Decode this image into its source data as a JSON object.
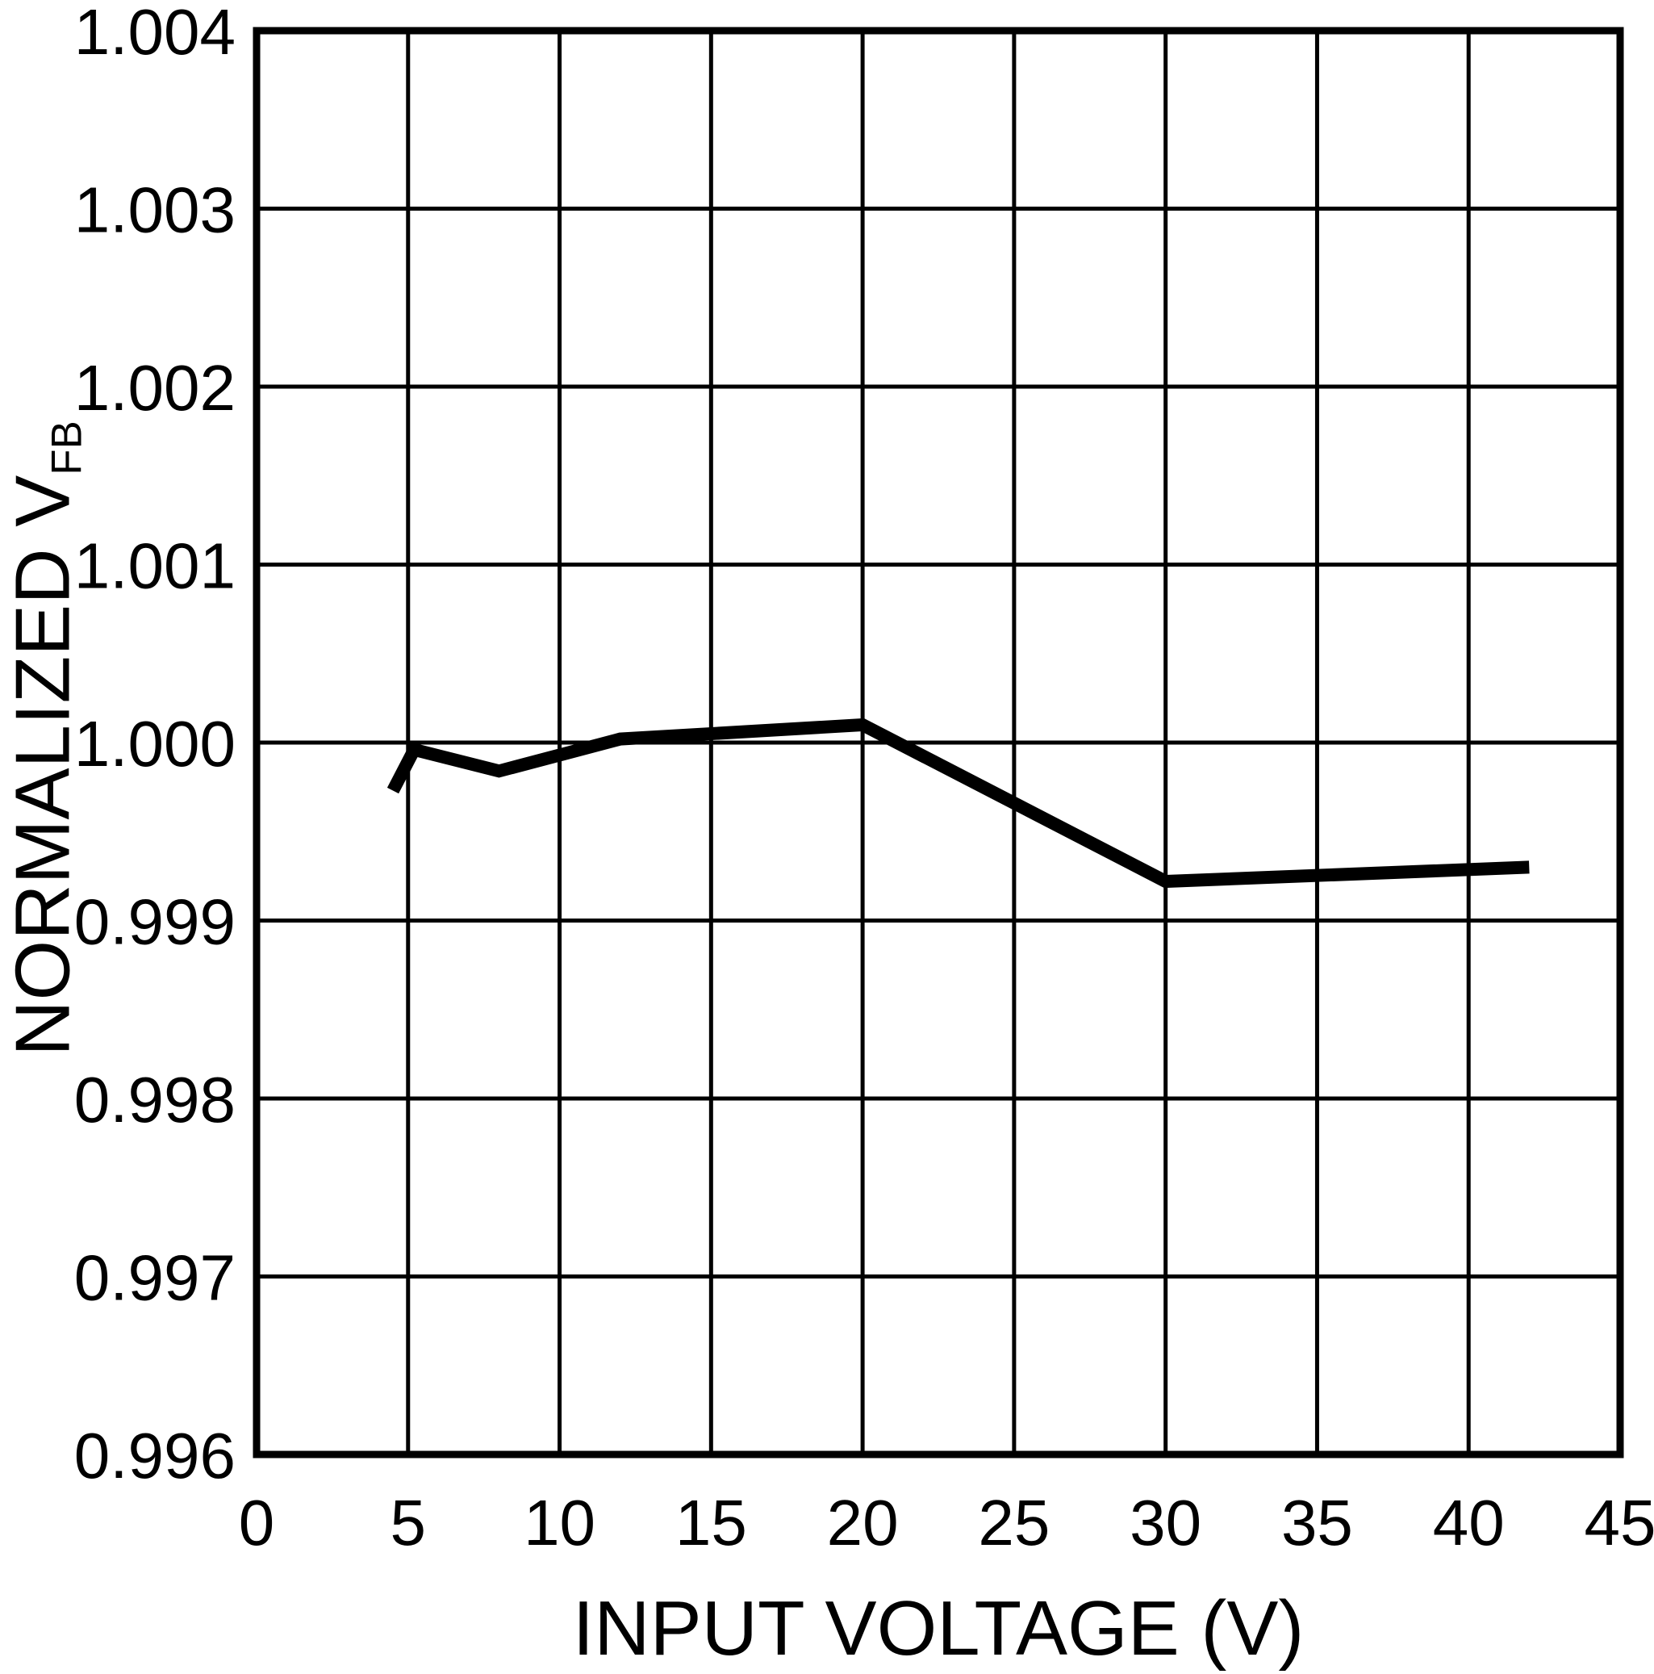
{
  "figure": {
    "background_color": "#ffffff"
  },
  "chart_data": {
    "type": "line",
    "title": "",
    "xlabel": "INPUT VOLTAGE (V)",
    "ylabel": "NORMALIZED V",
    "ylabel_subscript": "FB",
    "xlim": [
      0,
      45
    ],
    "ylim": [
      0.996,
      1.004
    ],
    "xticks": [
      0,
      5,
      10,
      15,
      20,
      25,
      30,
      35,
      40,
      45
    ],
    "xtick_labels": [
      "0",
      "5",
      "10",
      "15",
      "20",
      "25",
      "30",
      "35",
      "40",
      "45"
    ],
    "yticks": [
      0.996,
      0.997,
      0.998,
      0.999,
      1.0,
      1.001,
      1.002,
      1.003,
      1.004
    ],
    "ytick_labels": [
      "0.996",
      "0.997",
      "0.998",
      "0.999",
      "1.000",
      "1.001",
      "1.002",
      "1.003",
      "1.004"
    ],
    "grid": true,
    "legend": "none",
    "axis_color": "#000000",
    "grid_color": "#000000",
    "line_color": "#000000",
    "series": [
      {
        "name": "normalized-vfb-vs-input-voltage",
        "points": [
          [
            4.5,
            0.99973
          ],
          [
            5.2,
            0.99996
          ],
          [
            8,
            0.99984
          ],
          [
            12,
            1.00002
          ],
          [
            20,
            1.0001
          ],
          [
            30,
            0.99922
          ],
          [
            42,
            0.9993
          ]
        ]
      }
    ]
  }
}
